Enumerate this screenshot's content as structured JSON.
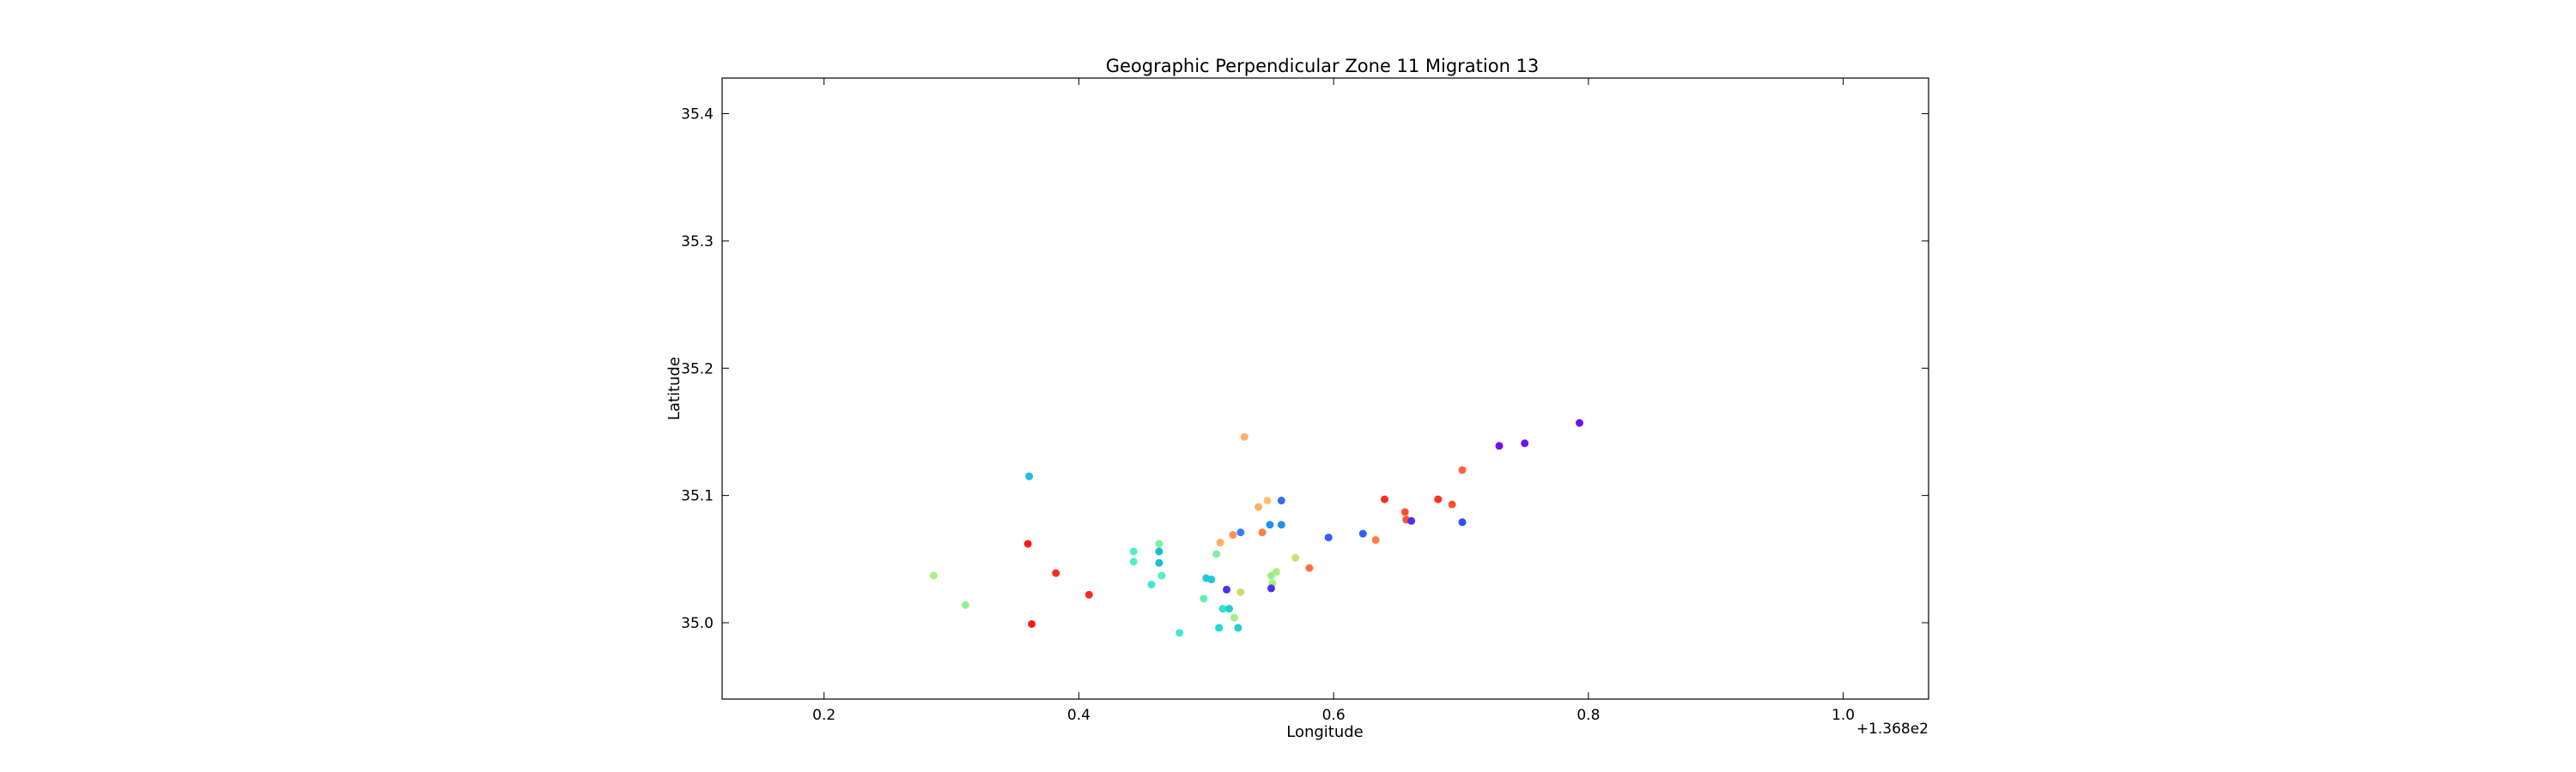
{
  "chart_data": {
    "type": "scatter",
    "title": "Geographic Perpendicular Zone 11 Migration 13",
    "xlabel": "Longitude",
    "ylabel": "Latitude",
    "x_offset_label": "+1.368e2",
    "xlim": [
      0.12,
      1.067
    ],
    "ylim": [
      34.94,
      35.428
    ],
    "x_ticks": [
      0.2,
      0.4,
      0.6,
      0.8,
      1.0
    ],
    "x_tick_labels": [
      "0.2",
      "0.4",
      "0.6",
      "0.8",
      "1.0"
    ],
    "y_ticks": [
      35.0,
      35.1,
      35.2,
      35.3,
      35.4
    ],
    "y_tick_labels": [
      "35.0",
      "35.1",
      "35.2",
      "35.3",
      "35.4"
    ],
    "grid": false,
    "legend": "none",
    "points": [
      {
        "x": 0.361,
        "y": 35.115,
        "color": "#1ec0e0"
      },
      {
        "x": 0.53,
        "y": 35.146,
        "color": "#ffb060"
      },
      {
        "x": 0.36,
        "y": 35.062,
        "color": "#ff1a1a"
      },
      {
        "x": 0.363,
        "y": 34.999,
        "color": "#ff1a1a"
      },
      {
        "x": 0.382,
        "y": 35.039,
        "color": "#ff2a1a"
      },
      {
        "x": 0.408,
        "y": 35.022,
        "color": "#ff2a1a"
      },
      {
        "x": 0.286,
        "y": 35.037,
        "color": "#a8f080"
      },
      {
        "x": 0.311,
        "y": 35.014,
        "color": "#90f090"
      },
      {
        "x": 0.443,
        "y": 35.056,
        "color": "#50f0c8"
      },
      {
        "x": 0.443,
        "y": 35.048,
        "color": "#50f0c8"
      },
      {
        "x": 0.457,
        "y": 35.03,
        "color": "#40e8d0"
      },
      {
        "x": 0.463,
        "y": 35.062,
        "color": "#7cf0a8"
      },
      {
        "x": 0.463,
        "y": 35.056,
        "color": "#10c0d8"
      },
      {
        "x": 0.463,
        "y": 35.047,
        "color": "#10c0d8"
      },
      {
        "x": 0.465,
        "y": 35.037,
        "color": "#50f0c8"
      },
      {
        "x": 0.479,
        "y": 34.992,
        "color": "#40e8d0"
      },
      {
        "x": 0.5,
        "y": 35.035,
        "color": "#20c8d8"
      },
      {
        "x": 0.504,
        "y": 35.034,
        "color": "#20c8d8"
      },
      {
        "x": 0.498,
        "y": 35.019,
        "color": "#60f0b8"
      },
      {
        "x": 0.508,
        "y": 35.054,
        "color": "#80f0a0"
      },
      {
        "x": 0.511,
        "y": 35.063,
        "color": "#ffb060"
      },
      {
        "x": 0.51,
        "y": 34.996,
        "color": "#20d8d8"
      },
      {
        "x": 0.513,
        "y": 35.011,
        "color": "#30e0d0"
      },
      {
        "x": 0.518,
        "y": 35.011,
        "color": "#20d0d0"
      },
      {
        "x": 0.516,
        "y": 35.026,
        "color": "#5030f0"
      },
      {
        "x": 0.522,
        "y": 35.004,
        "color": "#a0f088"
      },
      {
        "x": 0.527,
        "y": 35.024,
        "color": "#c8e070"
      },
      {
        "x": 0.525,
        "y": 34.996,
        "color": "#20d0d0"
      },
      {
        "x": 0.521,
        "y": 35.069,
        "color": "#ff9050"
      },
      {
        "x": 0.527,
        "y": 35.071,
        "color": "#3080ff"
      },
      {
        "x": 0.541,
        "y": 35.091,
        "color": "#ffb060"
      },
      {
        "x": 0.548,
        "y": 35.096,
        "color": "#ffc070"
      },
      {
        "x": 0.544,
        "y": 35.071,
        "color": "#ff8040"
      },
      {
        "x": 0.55,
        "y": 35.077,
        "color": "#2090f0"
      },
      {
        "x": 0.551,
        "y": 35.037,
        "color": "#90f090"
      },
      {
        "x": 0.552,
        "y": 35.031,
        "color": "#a8f080"
      },
      {
        "x": 0.555,
        "y": 35.04,
        "color": "#a8f080"
      },
      {
        "x": 0.551,
        "y": 35.027,
        "color": "#5030f0"
      },
      {
        "x": 0.559,
        "y": 35.096,
        "color": "#3070ff"
      },
      {
        "x": 0.559,
        "y": 35.077,
        "color": "#2090f0"
      },
      {
        "x": 0.57,
        "y": 35.051,
        "color": "#d0e070"
      },
      {
        "x": 0.581,
        "y": 35.043,
        "color": "#ff7040"
      },
      {
        "x": 0.596,
        "y": 35.067,
        "color": "#3060ff"
      },
      {
        "x": 0.623,
        "y": 35.07,
        "color": "#3060ff"
      },
      {
        "x": 0.633,
        "y": 35.065,
        "color": "#ff8040"
      },
      {
        "x": 0.64,
        "y": 35.097,
        "color": "#ff3020"
      },
      {
        "x": 0.656,
        "y": 35.087,
        "color": "#ff5030"
      },
      {
        "x": 0.657,
        "y": 35.081,
        "color": "#ff5030"
      },
      {
        "x": 0.661,
        "y": 35.08,
        "color": "#5030f0"
      },
      {
        "x": 0.682,
        "y": 35.097,
        "color": "#ff3020"
      },
      {
        "x": 0.693,
        "y": 35.093,
        "color": "#ff5030"
      },
      {
        "x": 0.701,
        "y": 35.12,
        "color": "#ff6040"
      },
      {
        "x": 0.701,
        "y": 35.079,
        "color": "#3050f0"
      },
      {
        "x": 0.73,
        "y": 35.139,
        "color": "#7010f8"
      },
      {
        "x": 0.75,
        "y": 35.141,
        "color": "#7010f8"
      },
      {
        "x": 0.793,
        "y": 35.157,
        "color": "#7010f8"
      }
    ]
  }
}
